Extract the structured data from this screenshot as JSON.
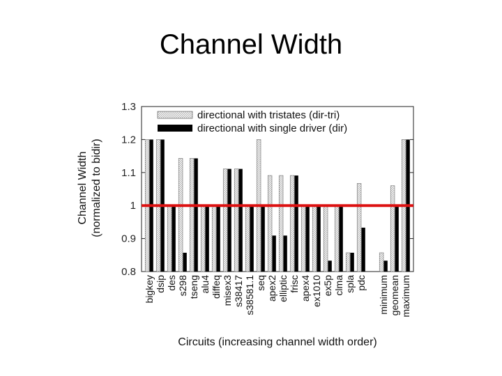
{
  "page": {
    "title": "Channel Width"
  },
  "colors": {
    "hatch_series": "#bdbdbd",
    "solid_series": "#000000",
    "reference_line": "#dd1111"
  },
  "chart_data": {
    "type": "bar",
    "title": "",
    "xlabel": "Circuits (increasing channel width order)",
    "ylabel": "Channel Width",
    "ylabel_sub": "(normalized to bidir)",
    "ylim": [
      0.8,
      1.3
    ],
    "yticks": [
      0.8,
      0.9,
      1,
      1.1,
      1.2,
      1.3
    ],
    "ytick_labels": [
      "0.8",
      "0.9",
      "1",
      "1.1",
      "1.2",
      "1.3"
    ],
    "legend_position": "top",
    "reference_line": 1.0,
    "categories": [
      "bigkey",
      "dsip",
      "des",
      "s298",
      "tseng",
      "alu4",
      "diffeq",
      "misex3",
      "s38417",
      "s38581.1",
      "seq",
      "apex2",
      "elliptic",
      "frisc",
      "apex4",
      "ex1010",
      "ex5p",
      "clma",
      "spla",
      "pdc",
      "",
      "minimum",
      "geomean",
      "maximum"
    ],
    "series": [
      {
        "name": "directional with tristates (dir-tri)",
        "style": "hatched",
        "values": [
          1.2,
          1.2,
          1.0,
          1.143,
          1.143,
          1.0,
          1.0,
          1.111,
          1.111,
          1.0,
          1.2,
          1.091,
          1.091,
          1.091,
          1.0,
          1.0,
          1.0,
          1.0,
          0.857,
          1.067,
          null,
          0.857,
          1.06,
          1.2
        ]
      },
      {
        "name": "directional with single driver (dir)",
        "style": "solid",
        "values": [
          1.2,
          1.2,
          1.0,
          0.857,
          1.143,
          1.0,
          1.0,
          1.111,
          1.111,
          1.0,
          1.0,
          0.909,
          0.909,
          1.091,
          1.0,
          1.0,
          0.833,
          1.0,
          0.857,
          0.933,
          null,
          0.833,
          1.0,
          1.2
        ]
      }
    ]
  }
}
